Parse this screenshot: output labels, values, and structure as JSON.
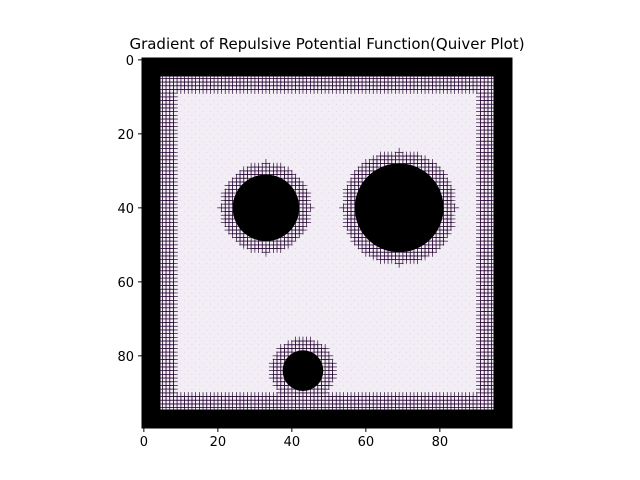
{
  "chart_data": {
    "type": "quiver",
    "title": "Gradient of Repulsive Potential Function(Quiver Plot)",
    "xlabel": "",
    "ylabel": "",
    "xlim": [
      -0.5,
      99.5
    ],
    "ylim": [
      99.5,
      -0.5
    ],
    "y_inverted": true,
    "xticks": [
      0,
      20,
      40,
      60,
      80
    ],
    "yticks": [
      0,
      20,
      40,
      60,
      80
    ],
    "grid": false,
    "legend": "none",
    "grid_size": [
      100,
      100
    ],
    "walls": {
      "thickness": 5
    },
    "obstacles": [
      {
        "shape": "circle",
        "center_x": 33,
        "center_y": 40,
        "radius": 9
      },
      {
        "shape": "circle",
        "center_x": 69,
        "center_y": 40,
        "radius": 12
      },
      {
        "shape": "circle",
        "center_x": 43,
        "center_y": 84,
        "radius": 5.5
      }
    ],
    "influence_distance": 3,
    "colors": {
      "arrow": "#2a0a36",
      "field_tint": "#f3eef6",
      "obstacle": "#000000"
    }
  }
}
